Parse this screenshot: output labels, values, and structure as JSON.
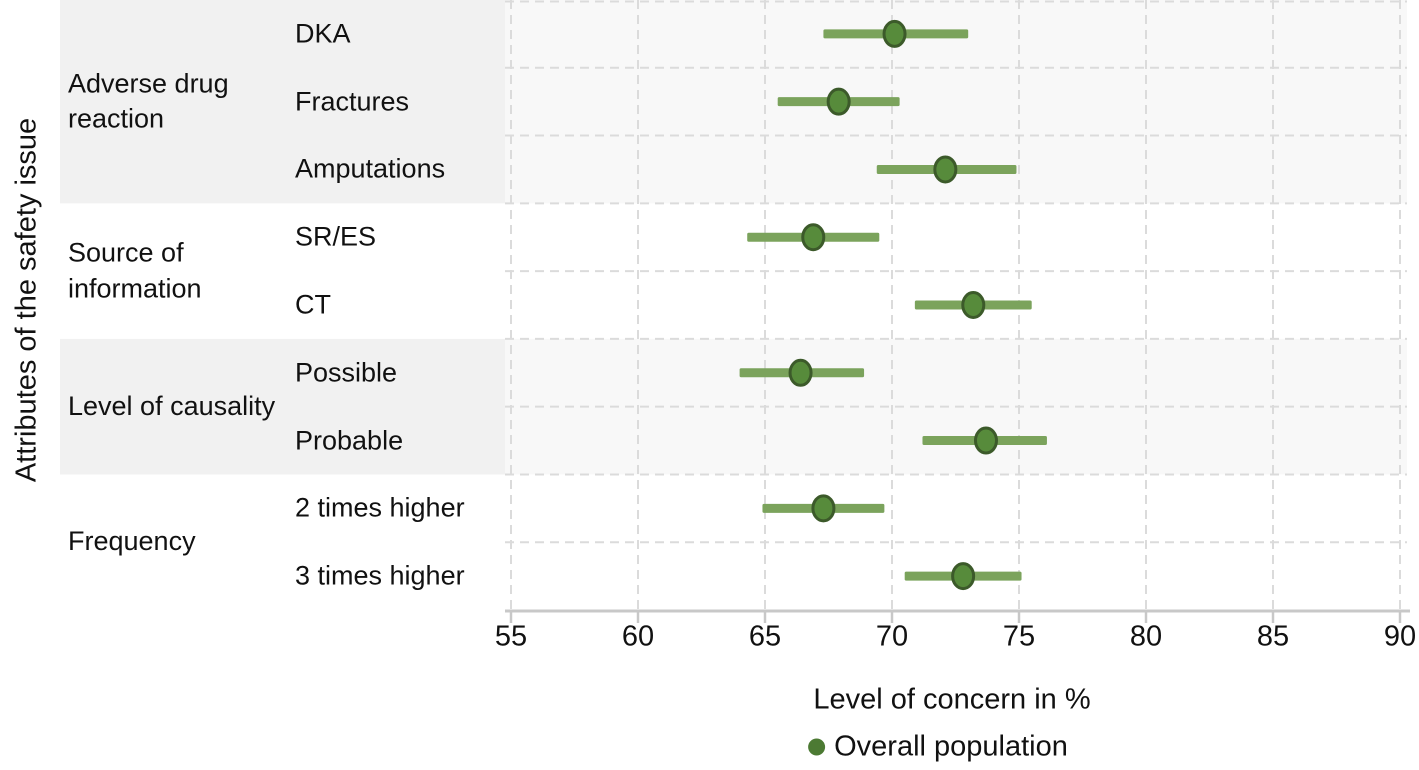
{
  "chart_data": {
    "type": "scatter",
    "subtype": "dot-and-error-bar-forest-plot",
    "title": "",
    "xlabel": "Level of concern in %",
    "ylabel": "Attributes of the safety issue",
    "xlim": [
      55,
      90
    ],
    "xticks": [
      55,
      60,
      65,
      70,
      75,
      80,
      85,
      90
    ],
    "grid": "dashed-both-axes",
    "legend_label": "Overall population",
    "legend_position": "bottom-center",
    "groups": [
      {
        "label": "Adverse drug reaction",
        "shaded": true,
        "items": [
          {
            "label": "DKA",
            "value": 70.1,
            "ci_low": 67.3,
            "ci_high": 73.0
          },
          {
            "label": "Fractures",
            "value": 67.9,
            "ci_low": 65.5,
            "ci_high": 70.3
          },
          {
            "label": "Amputations",
            "value": 72.1,
            "ci_low": 69.4,
            "ci_high": 74.9
          }
        ]
      },
      {
        "label": "Source of information",
        "shaded": false,
        "items": [
          {
            "label": "SR/ES",
            "value": 66.9,
            "ci_low": 64.3,
            "ci_high": 69.5
          },
          {
            "label": "CT",
            "value": 73.2,
            "ci_low": 70.9,
            "ci_high": 75.5
          }
        ]
      },
      {
        "label": "Level of causality",
        "shaded": true,
        "items": [
          {
            "label": "Possible",
            "value": 66.4,
            "ci_low": 64.0,
            "ci_high": 68.9
          },
          {
            "label": "Probable",
            "value": 73.7,
            "ci_low": 71.2,
            "ci_high": 76.1
          }
        ]
      },
      {
        "label": "Frequency",
        "shaded": false,
        "items": [
          {
            "label": "2 times higher",
            "value": 67.3,
            "ci_low": 64.9,
            "ci_high": 69.7
          },
          {
            "label": "3 times higher",
            "value": 72.8,
            "ci_low": 70.5,
            "ci_high": 75.1
          }
        ]
      }
    ],
    "colors": {
      "error_bar": "#7BA35C",
      "marker_fill": "#578B3B",
      "marker_stroke": "#3C5A2A",
      "legend_dot": "#4C7A33",
      "band_label_area": "#F1F1F1",
      "band_plot_area": "#F8F8F8",
      "gridline": "#DBDBDB",
      "axis_line": "#C8C8C8",
      "text": "#111111"
    }
  }
}
